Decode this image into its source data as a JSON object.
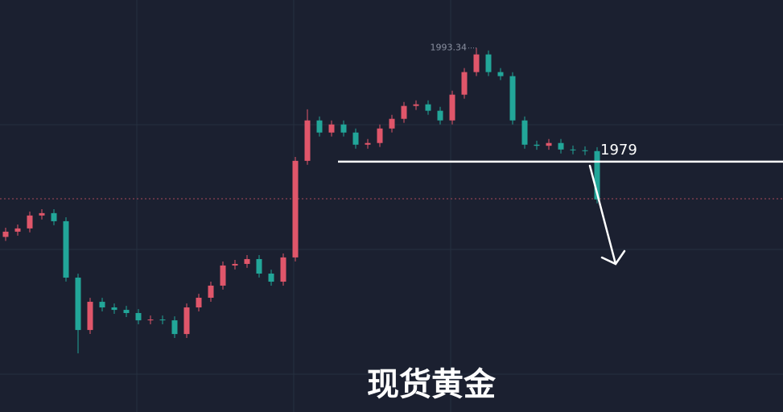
{
  "chart_data": {
    "type": "candlestick",
    "title": "现货黄金",
    "ylim": [
      1947.4,
      1999.4
    ],
    "up_color": "#e0566a",
    "down_color": "#22a699",
    "open": [
      1969.5,
      1970.16,
      1970.57,
      1972.2,
      1972.5,
      1971.48,
      1964.36,
      1957.75,
      1961.31,
      1960.6,
      1960.29,
      1959.89,
      1958.97,
      1959.07,
      1958.97,
      1957.24,
      1960.6,
      1961.82,
      1963.35,
      1965.89,
      1966.09,
      1966.7,
      1964.87,
      1963.85,
      1966.91,
      1979.1,
      1984.2,
      1982.67,
      1983.69,
      1982.67,
      1981.14,
      1981.35,
      1983.18,
      1984.4,
      1986.03,
      1986.23,
      1985.42,
      1984.2,
      1987.45,
      1990.3,
      1992.53,
      1990.3,
      1989.79,
      1984.2,
      1981.14,
      1981.0,
      1981.35,
      1980.53,
      1980.43,
      1980.33
    ],
    "high": [
      1970.66,
      1971.07,
      1972.7,
      1973.0,
      1973.0,
      1971.98,
      1964.86,
      1961.81,
      1961.81,
      1961.1,
      1960.79,
      1960.39,
      1959.57,
      1959.57,
      1959.47,
      1961.1,
      1962.32,
      1963.85,
      1966.39,
      1966.59,
      1967.2,
      1967.2,
      1965.37,
      1967.41,
      1979.6,
      1985.6,
      1984.7,
      1984.19,
      1984.19,
      1983.17,
      1981.85,
      1983.68,
      1984.9,
      1986.53,
      1986.73,
      1986.73,
      1985.92,
      1987.95,
      1990.8,
      1993.34,
      1993.03,
      1990.8,
      1990.29,
      1984.7,
      1981.64,
      1981.85,
      1981.85,
      1981.03,
      1980.93,
      1980.83
    ],
    "low": [
      1969.0,
      1969.66,
      1970.07,
      1971.7,
      1970.98,
      1963.86,
      1954.8,
      1957.25,
      1960.1,
      1959.79,
      1959.39,
      1958.47,
      1958.47,
      1958.47,
      1956.74,
      1956.74,
      1960.1,
      1961.32,
      1962.85,
      1965.39,
      1965.59,
      1964.37,
      1963.35,
      1963.35,
      1966.41,
      1978.6,
      1982.17,
      1982.17,
      1982.17,
      1980.64,
      1980.64,
      1980.85,
      1982.68,
      1983.9,
      1985.53,
      1984.92,
      1983.7,
      1983.7,
      1986.95,
      1989.8,
      1989.8,
      1989.29,
      1983.7,
      1980.64,
      1980.5,
      1980.5,
      1980.03,
      1979.93,
      1979.83,
      1973.73
    ],
    "close": [
      1970.16,
      1970.57,
      1972.2,
      1972.5,
      1971.48,
      1964.36,
      1957.75,
      1961.31,
      1960.6,
      1960.29,
      1959.89,
      1958.97,
      1959.07,
      1958.97,
      1957.24,
      1960.6,
      1961.82,
      1963.35,
      1965.89,
      1966.09,
      1966.7,
      1964.87,
      1963.85,
      1966.91,
      1979.1,
      1984.2,
      1982.67,
      1983.69,
      1982.67,
      1981.14,
      1981.35,
      1983.18,
      1984.4,
      1986.03,
      1986.23,
      1985.42,
      1984.2,
      1987.45,
      1990.3,
      1992.53,
      1990.3,
      1989.79,
      1984.2,
      1981.14,
      1981.0,
      1981.35,
      1980.53,
      1980.43,
      1980.33,
      1974.23
    ],
    "level_lines": [
      {
        "value": 1979,
        "color": "#ffffff"
      }
    ]
  }
}
